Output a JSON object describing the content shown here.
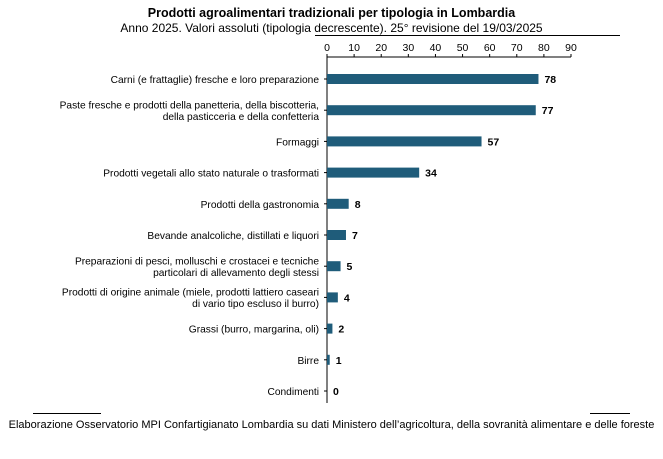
{
  "header": {
    "title": "Prodotti agroalimentari tradizionali per tipologia in Lombardia",
    "subtitle": "Anno 2025. Valori assoluti (tipologia decrescente). 25° revisione del 19/03/2025"
  },
  "footer": {
    "source": "Elaborazione Osservatorio MPI Confartigianato Lombardia su dati Ministero dell’agricoltura, della sovranità alimentare e delle foreste"
  },
  "colors": {
    "bar": "#1f5c7a",
    "axis": "#000000"
  },
  "chart_data": {
    "type": "bar",
    "orientation": "horizontal",
    "xlim": [
      0,
      90
    ],
    "ticks": [
      0,
      10,
      20,
      30,
      40,
      50,
      60,
      70,
      80,
      90
    ],
    "axis_position": "top",
    "grid": false,
    "legend": "none",
    "categories": [
      [
        "Carni (e frattaglie) fresche e loro preparazione"
      ],
      [
        "Paste fresche e prodotti della panetteria, della biscotteria,",
        "della pasticceria e della confetteria"
      ],
      [
        "Formaggi"
      ],
      [
        "Prodotti vegetali allo stato naturale o trasformati"
      ],
      [
        "Prodotti della gastronomia"
      ],
      [
        "Bevande analcoliche, distillati e liquori"
      ],
      [
        "Preparazioni di pesci, molluschi e crostacei e tecniche",
        "particolari di allevamento degli stessi"
      ],
      [
        "Prodotti di origine animale (miele, prodotti lattiero caseari",
        "di vario tipo escluso il burro)"
      ],
      [
        "Grassi (burro, margarina, oli)"
      ],
      [
        "Birre"
      ],
      [
        "Condimenti"
      ]
    ],
    "values": [
      78,
      77,
      57,
      34,
      8,
      7,
      5,
      4,
      2,
      1,
      0
    ]
  }
}
